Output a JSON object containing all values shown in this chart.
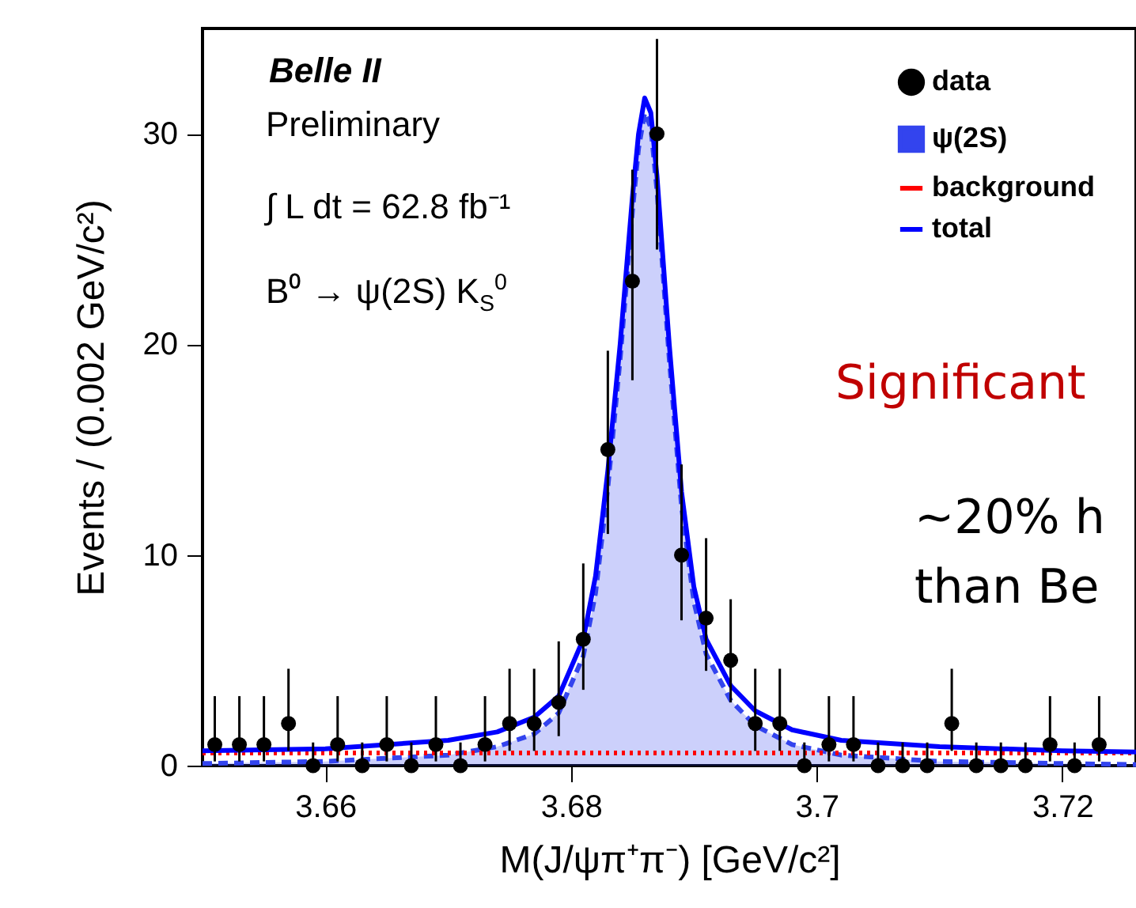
{
  "chart_data": {
    "type": "scatter",
    "xlabel": "M(J/ψπ⁺π⁻) [GeV/c²]",
    "ylabel": "Events / (0.002 GeV/c²)",
    "xlim": [
      3.65,
      3.726
    ],
    "ylim": [
      0,
      35
    ],
    "xticks": [
      3.66,
      3.68,
      3.7,
      3.72
    ],
    "yticks": [
      0,
      10,
      20,
      30
    ],
    "legend": "top right",
    "annotations": [
      "Belle II",
      "Preliminary",
      "∫ L dt = 62.8 fb⁻¹",
      "B⁰ → ψ(2S) K$_{S}$$^{0}$",
      "Significant",
      "~20% h",
      "than Be"
    ],
    "series": [
      {
        "name": "data",
        "marker": "circle",
        "color": "#000000",
        "x": [
          3.651,
          3.653,
          3.655,
          3.657,
          3.659,
          3.661,
          3.663,
          3.665,
          3.667,
          3.669,
          3.671,
          3.673,
          3.675,
          3.677,
          3.679,
          3.681,
          3.683,
          3.685,
          3.687,
          3.689,
          3.691,
          3.693,
          3.695,
          3.697,
          3.699,
          3.701,
          3.703,
          3.705,
          3.707,
          3.709,
          3.711,
          3.713,
          3.715,
          3.717,
          3.719,
          3.721,
          3.723
        ],
        "values": [
          1,
          1,
          1,
          2,
          0,
          1,
          0,
          1,
          0,
          1,
          0,
          1,
          2,
          2,
          3,
          6,
          15,
          23,
          30,
          10,
          7,
          5,
          2,
          2,
          0,
          1,
          1,
          0,
          0,
          0,
          2,
          0,
          0,
          0,
          1,
          0,
          1
        ],
        "errors": [
          [
            0.2,
            3.3
          ],
          [
            0.2,
            3.3
          ],
          [
            0.2,
            3.3
          ],
          [
            0.7,
            4.6
          ],
          [
            0,
            1.1
          ],
          [
            0.2,
            3.3
          ],
          [
            0,
            1.1
          ],
          [
            0.2,
            3.3
          ],
          [
            0,
            1.1
          ],
          [
            0.2,
            3.3
          ],
          [
            0,
            1.1
          ],
          [
            0.2,
            3.3
          ],
          [
            0.7,
            4.6
          ],
          [
            0.7,
            4.6
          ],
          [
            1.4,
            5.9
          ],
          [
            3.6,
            9.6
          ],
          [
            11,
            19.7
          ],
          [
            18.3,
            28.3
          ],
          [
            24.5,
            34.5
          ],
          [
            6.9,
            14.3
          ],
          [
            4.5,
            10.8
          ],
          [
            3,
            7.9
          ],
          [
            0.7,
            4.6
          ],
          [
            0.7,
            4.6
          ],
          [
            0,
            1.1
          ],
          [
            0.2,
            3.3
          ],
          [
            0.2,
            3.3
          ],
          [
            0,
            1.1
          ],
          [
            0,
            1.1
          ],
          [
            0,
            1.1
          ],
          [
            0.7,
            4.6
          ],
          [
            0,
            1.1
          ],
          [
            0,
            1.1
          ],
          [
            0,
            1.1
          ],
          [
            0.2,
            3.3
          ],
          [
            0,
            1.1
          ],
          [
            0.2,
            3.3
          ]
        ]
      },
      {
        "name": "ψ(2S)",
        "type": "area",
        "color": "#3344ee",
        "line_style": "dashed",
        "x": [
          3.65,
          3.66,
          3.67,
          3.674,
          3.677,
          3.679,
          3.681,
          3.682,
          3.683,
          3.684,
          3.685,
          3.6855,
          3.686,
          3.6865,
          3.687,
          3.688,
          3.689,
          3.69,
          3.691,
          3.693,
          3.695,
          3.698,
          3.702,
          3.71,
          3.72,
          3.726
        ],
        "values": [
          0.1,
          0.2,
          0.5,
          0.9,
          1.5,
          2.5,
          5.2,
          8.2,
          13.2,
          19.3,
          26.3,
          29.3,
          31,
          30.3,
          27.3,
          19.3,
          12.3,
          7.8,
          5.3,
          3.1,
          1.9,
          1.0,
          0.5,
          0.2,
          0.1,
          0.05
        ]
      },
      {
        "name": "background",
        "type": "line",
        "color": "#ff0000",
        "line_style": "dotted",
        "x": [
          3.65,
          3.726
        ],
        "values": [
          0.6,
          0.6
        ]
      },
      {
        "name": "total",
        "type": "line",
        "color": "#0000ff",
        "line_style": "solid",
        "x": [
          3.65,
          3.66,
          3.67,
          3.674,
          3.677,
          3.679,
          3.681,
          3.682,
          3.683,
          3.684,
          3.685,
          3.6855,
          3.686,
          3.6865,
          3.687,
          3.688,
          3.689,
          3.69,
          3.691,
          3.693,
          3.695,
          3.698,
          3.702,
          3.71,
          3.72,
          3.726
        ],
        "values": [
          0.7,
          0.8,
          1.2,
          1.6,
          2.3,
          3.3,
          6,
          9,
          14,
          20,
          27,
          30,
          31.7,
          31,
          28,
          20,
          13,
          8.5,
          6,
          3.8,
          2.6,
          1.7,
          1.2,
          0.9,
          0.7,
          0.65
        ]
      }
    ]
  }
}
